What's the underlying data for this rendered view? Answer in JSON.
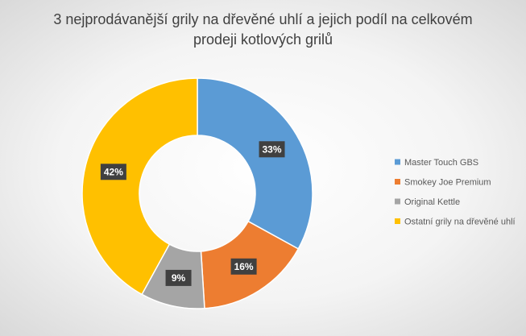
{
  "chart_data": {
    "type": "donut",
    "title": "3 nejprodávanější grily na dřevěné uhlí a jejich podíl na celkovém prodeji kotlových grilů",
    "categories": [
      "Master Touch GBS",
      "Smokey Joe Premium",
      "Original Kettle",
      "Ostatní grily na dřevěné uhlí"
    ],
    "values": [
      33,
      16,
      9,
      42
    ],
    "value_labels": [
      "33%",
      "16%",
      "9%",
      "42%"
    ],
    "colors": [
      "#5b9bd5",
      "#ed7d31",
      "#a5a5a5",
      "#ffc000"
    ],
    "legend": "right"
  }
}
